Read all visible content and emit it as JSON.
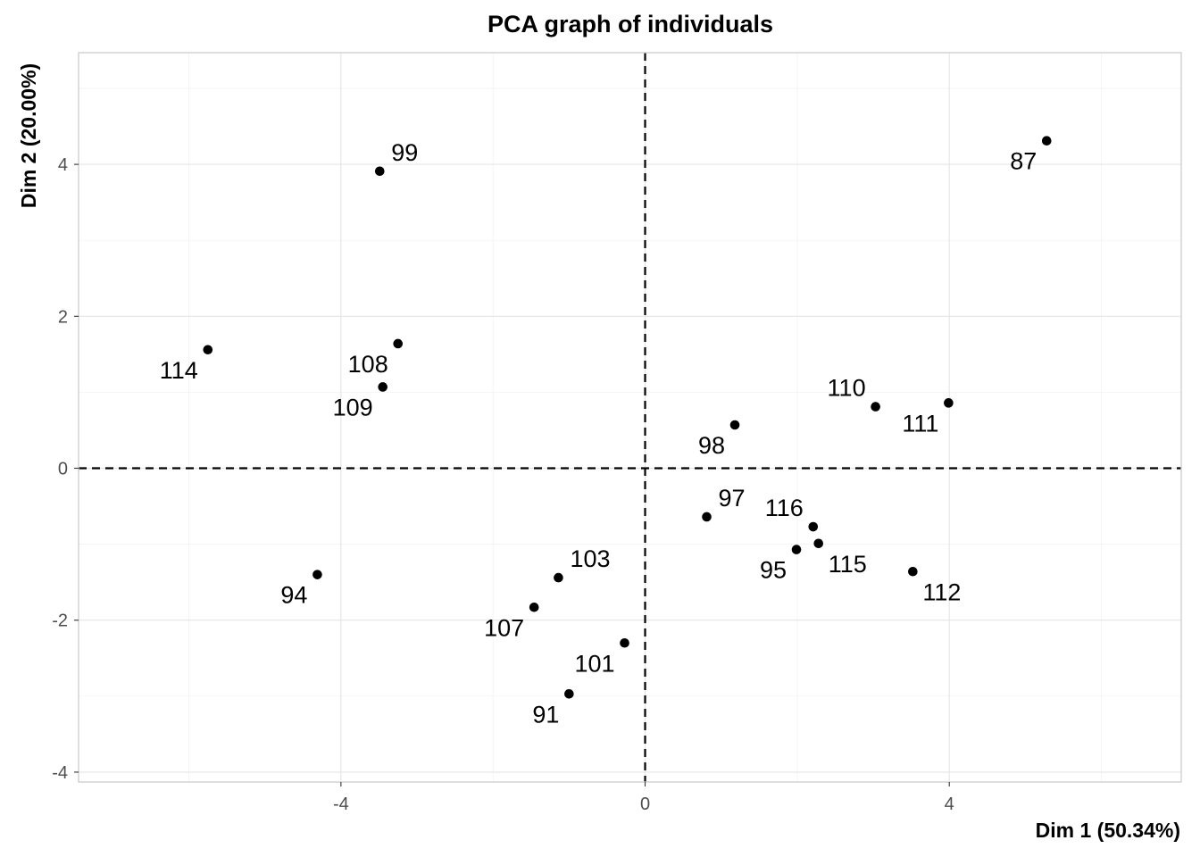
{
  "chart_data": {
    "type": "scatter",
    "title": "PCA graph of individuals",
    "xlabel": "Dim 1 (50.34%)",
    "ylabel": "Dim 2 (20.00%)",
    "xlim": [
      -7.45,
      7.05
    ],
    "ylim": [
      -4.13,
      5.47
    ],
    "xticks": [
      -4,
      0,
      4
    ],
    "xtick_labels": [
      "-4",
      "0",
      "4"
    ],
    "yticks": [
      -4,
      -2,
      0,
      2,
      4
    ],
    "ytick_labels": [
      "-4",
      "-2",
      "0",
      "2",
      "4"
    ],
    "grid": true,
    "reference_lines": {
      "x": 0,
      "y": 0,
      "style": "dashed"
    },
    "points": [
      {
        "label": "87",
        "x": 5.28,
        "y": 4.31,
        "anchor": "bottom-left"
      },
      {
        "label": "99",
        "x": -3.49,
        "y": 3.91,
        "anchor": "top-right"
      },
      {
        "label": "114",
        "x": -5.75,
        "y": 1.56,
        "anchor": "bottom-left"
      },
      {
        "label": "108",
        "x": -3.25,
        "y": 1.64,
        "anchor": "bottom-left"
      },
      {
        "label": "109",
        "x": -3.45,
        "y": 1.07,
        "anchor": "bottom-left"
      },
      {
        "label": "110",
        "x": 3.03,
        "y": 0.81,
        "anchor": "top-left"
      },
      {
        "label": "111",
        "x": 3.99,
        "y": 0.86,
        "anchor": "bottom-left"
      },
      {
        "label": "98",
        "x": 1.18,
        "y": 0.57,
        "anchor": "bottom-left"
      },
      {
        "label": "97",
        "x": 0.81,
        "y": -0.64,
        "anchor": "top-right"
      },
      {
        "label": "116",
        "x": 2.21,
        "y": -0.77,
        "anchor": "top-left"
      },
      {
        "label": "115",
        "x": 2.28,
        "y": -0.99,
        "anchor": "bottom-right"
      },
      {
        "label": "95",
        "x": 1.99,
        "y": -1.07,
        "anchor": "bottom-left"
      },
      {
        "label": "112",
        "x": 3.52,
        "y": -1.36,
        "anchor": "bottom-right"
      },
      {
        "label": "103",
        "x": -1.14,
        "y": -1.44,
        "anchor": "top-right"
      },
      {
        "label": "94",
        "x": -4.31,
        "y": -1.4,
        "anchor": "bottom-left"
      },
      {
        "label": "107",
        "x": -1.46,
        "y": -1.83,
        "anchor": "bottom-left"
      },
      {
        "label": "101",
        "x": -0.27,
        "y": -2.3,
        "anchor": "bottom-left"
      },
      {
        "label": "91",
        "x": -1.0,
        "y": -2.97,
        "anchor": "bottom-left"
      }
    ]
  }
}
